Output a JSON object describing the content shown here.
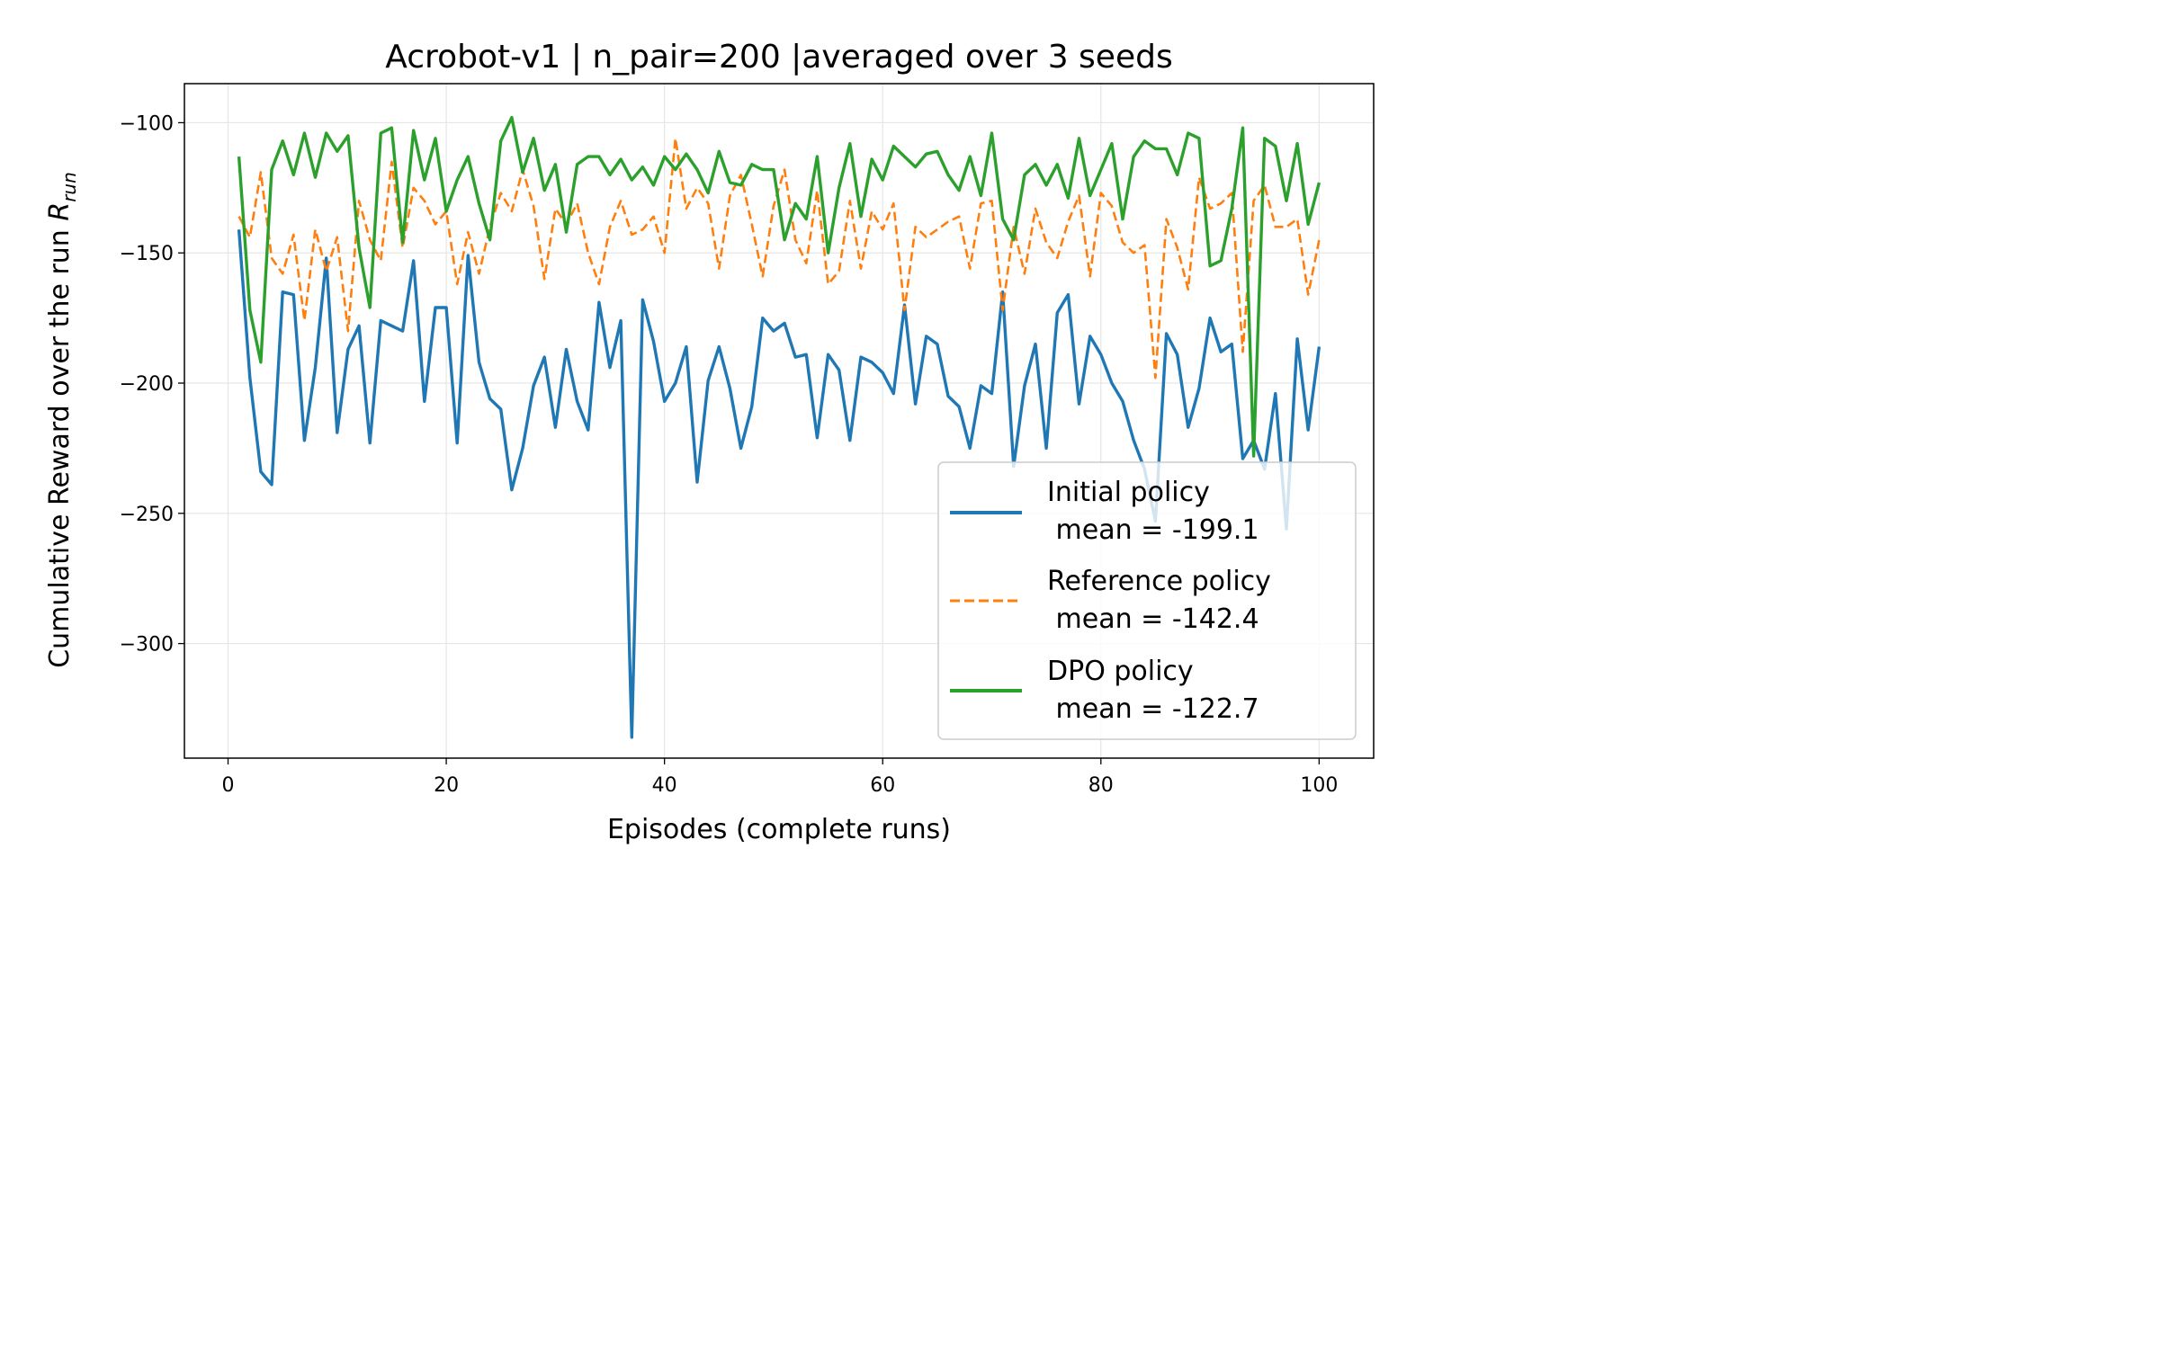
{
  "chart_data": {
    "type": "line",
    "title": "Acrobot-v1 | n_pair=200 |averaged over 3 seeds",
    "xlabel": "Episodes (complete runs)",
    "ylabel": "Cumulative Reward over the run R_run",
    "ylabel_main": "Cumulative Reward over the run ",
    "ylabel_symbol": "R",
    "ylabel_subscript": "run",
    "xlim": [
      -4,
      105
    ],
    "ylim": [
      -344,
      -85
    ],
    "xticks": [
      0,
      20,
      40,
      60,
      80,
      100
    ],
    "xtick_labels": [
      "0",
      "20",
      "40",
      "60",
      "80",
      "100"
    ],
    "yticks": [
      -100,
      -150,
      -200,
      -250,
      -300
    ],
    "ytick_labels": [
      "−100",
      "−150",
      "−200",
      "−250",
      "−300"
    ],
    "grid": true,
    "legend_position": "lower-right",
    "x": [
      1,
      2,
      3,
      4,
      5,
      6,
      7,
      8,
      9,
      10,
      11,
      12,
      13,
      14,
      15,
      16,
      17,
      18,
      19,
      20,
      21,
      22,
      23,
      24,
      25,
      26,
      27,
      28,
      29,
      30,
      31,
      32,
      33,
      34,
      35,
      36,
      37,
      38,
      39,
      40,
      41,
      42,
      43,
      44,
      45,
      46,
      47,
      48,
      49,
      50,
      51,
      52,
      53,
      54,
      55,
      56,
      57,
      58,
      59,
      60,
      61,
      62,
      63,
      64,
      65,
      66,
      67,
      68,
      69,
      70,
      71,
      72,
      73,
      74,
      75,
      76,
      77,
      78,
      79,
      80,
      81,
      82,
      83,
      84,
      85,
      86,
      87,
      88,
      89,
      90,
      91,
      92,
      93,
      94,
      95,
      96,
      97,
      98,
      99,
      100
    ],
    "series": [
      {
        "name": "Initial policy",
        "legend_line1": "Initial policy",
        "legend_line2": " mean = -199.1",
        "color": "#1f77b4",
        "dash": "solid",
        "values": [
          -141,
          -198,
          -234,
          -239,
          -165,
          -166,
          -222,
          -194,
          -152,
          -219,
          -187,
          -178,
          -223,
          -176,
          -178,
          -180,
          -153,
          -207,
          -171,
          -171,
          -223,
          -151,
          -192,
          -206,
          -210,
          -241,
          -225,
          -201,
          -190,
          -217,
          -187,
          -207,
          -218,
          -169,
          -194,
          -176,
          -336,
          -168,
          -184,
          -207,
          -200,
          -186,
          -238,
          -199,
          -186,
          -202,
          -225,
          -209,
          -175,
          -180,
          -177,
          -190,
          -189,
          -221,
          -189,
          -195,
          -222,
          -190,
          -192,
          -196,
          -204,
          -170,
          -208,
          -182,
          -185,
          -205,
          -209,
          -225,
          -201,
          -204,
          -165,
          -232,
          -201,
          -185,
          -225,
          -173,
          -166,
          -208,
          -182,
          -189,
          -200,
          -207,
          -222,
          -233,
          -253,
          -181,
          -189,
          -217,
          -202,
          -175,
          -188,
          -185,
          -229,
          -222,
          -233,
          -204,
          -256,
          -183,
          -218,
          -186
        ]
      },
      {
        "name": "Reference policy",
        "legend_line1": "Reference policy",
        "legend_line2": " mean = -142.4",
        "color": "#ff7f0e",
        "dash": "dashed",
        "values": [
          -136,
          -144,
          -119,
          -152,
          -158,
          -143,
          -176,
          -141,
          -157,
          -144,
          -180,
          -130,
          -145,
          -153,
          -115,
          -148,
          -125,
          -130,
          -139,
          -134,
          -162,
          -142,
          -158,
          -140,
          -127,
          -134,
          -118,
          -132,
          -160,
          -133,
          -139,
          -131,
          -150,
          -162,
          -140,
          -130,
          -143,
          -141,
          -136,
          -150,
          -106,
          -133,
          -125,
          -131,
          -156,
          -128,
          -120,
          -139,
          -159,
          -132,
          -118,
          -145,
          -154,
          -126,
          -162,
          -157,
          -130,
          -156,
          -134,
          -141,
          -131,
          -172,
          -140,
          -144,
          -141,
          -138,
          -136,
          -156,
          -131,
          -130,
          -172,
          -140,
          -158,
          -133,
          -146,
          -152,
          -138,
          -128,
          -159,
          -127,
          -132,
          -146,
          -150,
          -147,
          -198,
          -137,
          -148,
          -164,
          -121,
          -133,
          -131,
          -127,
          -188,
          -130,
          -124,
          -140,
          -140,
          -137,
          -166,
          -145
        ]
      },
      {
        "name": "DPO policy",
        "legend_line1": "DPO policy",
        "legend_line2": " mean = -122.7",
        "color": "#2ca02c",
        "dash": "solid",
        "values": [
          -113,
          -172,
          -192,
          -118,
          -107,
          -120,
          -104,
          -121,
          -104,
          -111,
          -105,
          -148,
          -171,
          -104,
          -102,
          -146,
          -103,
          -122,
          -106,
          -134,
          -122,
          -113,
          -131,
          -145,
          -107,
          -98,
          -119,
          -106,
          -126,
          -116,
          -142,
          -116,
          -113,
          -113,
          -120,
          -114,
          -122,
          -117,
          -124,
          -113,
          -118,
          -112,
          -118,
          -127,
          -111,
          -123,
          -124,
          -116,
          -118,
          -118,
          -145,
          -131,
          -137,
          -113,
          -150,
          -125,
          -108,
          -136,
          -114,
          -122,
          -109,
          -113,
          -117,
          -112,
          -111,
          -120,
          -126,
          -113,
          -128,
          -104,
          -137,
          -145,
          -120,
          -116,
          -124,
          -116,
          -129,
          -106,
          -128,
          -118,
          -108,
          -137,
          -113,
          -107,
          -110,
          -110,
          -120,
          -104,
          -106,
          -155,
          -153,
          -133,
          -102,
          -228,
          -106,
          -109,
          -130,
          -108,
          -139,
          -123
        ]
      }
    ]
  }
}
